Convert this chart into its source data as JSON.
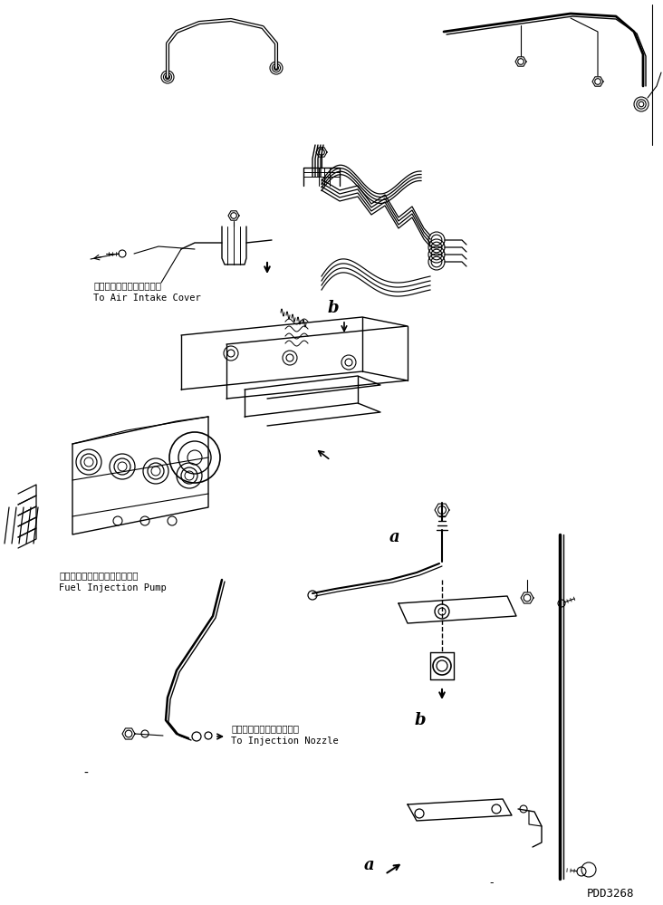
{
  "bg_color": "#ffffff",
  "line_color": "#000000",
  "lw": 0.8,
  "watermark": "PDD3268",
  "labels": {
    "air_intake_jp": "エアーインテークカバーへ",
    "air_intake_en": "To Air Intake Cover",
    "pump_jp": "フェルインジェクションポンプ",
    "pump_en": "Fuel Injection Pump",
    "nozzle_jp": "インジェクションノズルへ",
    "nozzle_en": "To Injection Nozzle",
    "label_a": "a",
    "label_b": "b"
  }
}
